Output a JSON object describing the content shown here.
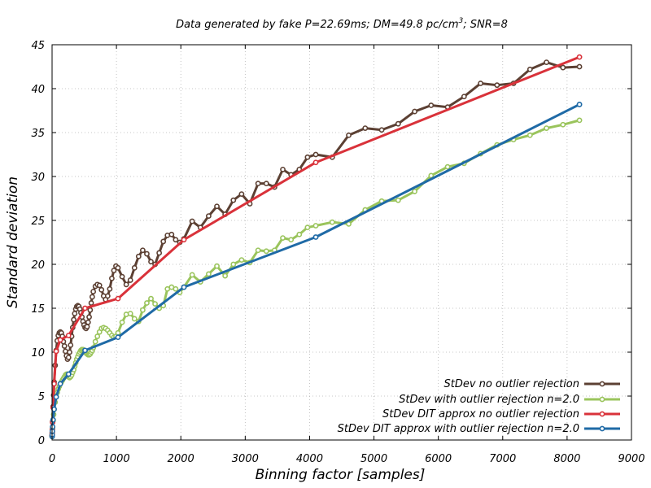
{
  "chart_data": {
    "type": "line",
    "title_parts": {
      "before_superscript": "Data generated by fake P=22.69ms; DM=49.8 pc/cm",
      "superscript": "3",
      "after_superscript": "; SNR=8"
    },
    "xlabel": "Binning factor [samples]",
    "ylabel": "Standard deviation",
    "xlim": [
      0,
      9000
    ],
    "ylim": [
      0,
      45
    ],
    "x_ticks": [
      0,
      1000,
      2000,
      3000,
      4000,
      5000,
      6000,
      7000,
      8000,
      9000
    ],
    "y_ticks": [
      0,
      5,
      10,
      15,
      20,
      25,
      30,
      35,
      40,
      45
    ],
    "grid": true,
    "legend_position": "bottom-right",
    "series": [
      {
        "name": "StDev no outlier rejection",
        "color": "#5c4033",
        "x": [
          1,
          2,
          4,
          8,
          16,
          24,
          32,
          48,
          64,
          80,
          96,
          112,
          128,
          144,
          160,
          176,
          192,
          208,
          224,
          240,
          256,
          272,
          288,
          304,
          320,
          336,
          352,
          368,
          384,
          400,
          416,
          432,
          448,
          464,
          480,
          496,
          512,
          528,
          544,
          560,
          576,
          592,
          608,
          624,
          640,
          672,
          704,
          736,
          768,
          800,
          832,
          864,
          896,
          928,
          960,
          992,
          1024,
          1088,
          1152,
          1216,
          1280,
          1344,
          1408,
          1472,
          1536,
          1600,
          1664,
          1728,
          1792,
          1856,
          1920,
          1984,
          2048,
          2176,
          2304,
          2432,
          2560,
          2688,
          2816,
          2944,
          3072,
          3200,
          3328,
          3456,
          3584,
          3712,
          3840,
          3968,
          4096,
          4352,
          4608,
          4864,
          5120,
          5376,
          5632,
          5888,
          6144,
          6400,
          6656,
          6912,
          7168,
          7424,
          7680,
          7936,
          8192
        ],
        "y": [
          0.5,
          0.8,
          1.2,
          2.1,
          3.8,
          5.1,
          6.6,
          8.5,
          10.2,
          11.3,
          11.9,
          12.2,
          12.3,
          12.2,
          11.8,
          11.2,
          10.7,
          10.1,
          9.6,
          9.2,
          9.4,
          10.0,
          10.8,
          11.8,
          12.8,
          13.7,
          14.4,
          14.9,
          15.2,
          15.3,
          15.2,
          14.9,
          14.5,
          14.0,
          13.5,
          13.1,
          12.8,
          12.7,
          12.9,
          13.4,
          14.0,
          14.8,
          15.6,
          16.3,
          16.9,
          17.5,
          17.7,
          17.6,
          17.1,
          16.4,
          16.0,
          16.4,
          17.2,
          18.4,
          19.3,
          19.8,
          19.6,
          18.6,
          17.7,
          18.2,
          19.6,
          20.9,
          21.6,
          21.2,
          20.3,
          20.0,
          21.3,
          22.6,
          23.3,
          23.4,
          22.8,
          22.5,
          22.9,
          24.9,
          24.2,
          25.5,
          26.6,
          25.7,
          27.3,
          28.0,
          26.9,
          29.2,
          29.2,
          28.8,
          30.8,
          30.2,
          30.8,
          32.2,
          32.5,
          32.2,
          34.7,
          35.5,
          35.3,
          36.0,
          37.4,
          38.1,
          37.9,
          39.1,
          40.6,
          40.4,
          40.6,
          42.2,
          43.0,
          42.4,
          42.5
        ]
      },
      {
        "name": "StDev with outlier rejection n=2.0",
        "color": "#9ac45c",
        "x": [
          1,
          2,
          4,
          8,
          16,
          24,
          32,
          48,
          64,
          80,
          96,
          112,
          128,
          144,
          160,
          176,
          192,
          208,
          224,
          240,
          256,
          272,
          288,
          304,
          320,
          336,
          352,
          368,
          384,
          400,
          416,
          432,
          448,
          464,
          480,
          496,
          512,
          528,
          544,
          560,
          576,
          592,
          608,
          624,
          640,
          672,
          704,
          736,
          768,
          800,
          832,
          864,
          896,
          928,
          960,
          992,
          1024,
          1088,
          1152,
          1216,
          1280,
          1344,
          1408,
          1472,
          1536,
          1600,
          1664,
          1728,
          1792,
          1856,
          1920,
          1984,
          2048,
          2176,
          2304,
          2432,
          2560,
          2688,
          2816,
          2944,
          3072,
          3200,
          3328,
          3456,
          3584,
          3712,
          3840,
          3968,
          4096,
          4352,
          4608,
          4864,
          5120,
          5376,
          5632,
          5888,
          6144,
          6400,
          6656,
          6912,
          7168,
          7424,
          7680,
          7936,
          8192
        ],
        "y": [
          0.4,
          0.6,
          0.9,
          1.4,
          2.2,
          2.9,
          3.5,
          4.3,
          4.9,
          5.4,
          5.8,
          6.1,
          6.4,
          6.6,
          6.8,
          7.0,
          7.2,
          7.4,
          7.5,
          7.5,
          7.2,
          7.1,
          7.2,
          7.4,
          7.7,
          8.0,
          8.4,
          8.8,
          9.2,
          9.5,
          9.8,
          10.0,
          10.2,
          10.3,
          10.3,
          10.2,
          10.1,
          9.9,
          9.8,
          9.7,
          9.7,
          9.8,
          10.0,
          10.2,
          10.5,
          11.2,
          11.8,
          12.3,
          12.7,
          12.8,
          12.7,
          12.5,
          12.2,
          11.9,
          11.7,
          11.8,
          12.2,
          13.4,
          14.3,
          14.4,
          13.8,
          13.5,
          14.8,
          15.6,
          16.1,
          15.5,
          15.0,
          15.3,
          17.2,
          17.4,
          17.2,
          16.8,
          17.4,
          18.8,
          18.0,
          18.9,
          19.8,
          18.7,
          20.0,
          20.5,
          20.2,
          21.6,
          21.5,
          21.6,
          23.0,
          22.8,
          23.4,
          24.2,
          24.4,
          24.8,
          24.6,
          26.2,
          27.2,
          27.3,
          28.3,
          30.1,
          31.1,
          31.5,
          32.6,
          33.6,
          34.2,
          34.7,
          35.5,
          35.9,
          36.4
        ]
      },
      {
        "name": "StDev DIT approx no outlier rejection",
        "color": "#d9323a",
        "x": [
          1,
          2,
          4,
          8,
          16,
          32,
          64,
          128,
          256,
          512,
          1024,
          2048,
          4096,
          8192
        ],
        "y": [
          0.5,
          0.8,
          1.2,
          2.0,
          3.7,
          6.4,
          10.1,
          11.4,
          11.9,
          15.0,
          16.1,
          22.8,
          31.6,
          43.6
        ]
      },
      {
        "name": "StDev DIT approx with outlier rejection n=2.0",
        "color": "#1f6aa6",
        "x": [
          1,
          2,
          4,
          8,
          16,
          32,
          64,
          128,
          256,
          512,
          1024,
          2048,
          4096,
          8192
        ],
        "y": [
          0.4,
          0.6,
          1.0,
          1.5,
          2.3,
          3.5,
          4.9,
          6.4,
          7.5,
          10.2,
          11.7,
          17.4,
          23.1,
          38.2
        ]
      }
    ]
  }
}
